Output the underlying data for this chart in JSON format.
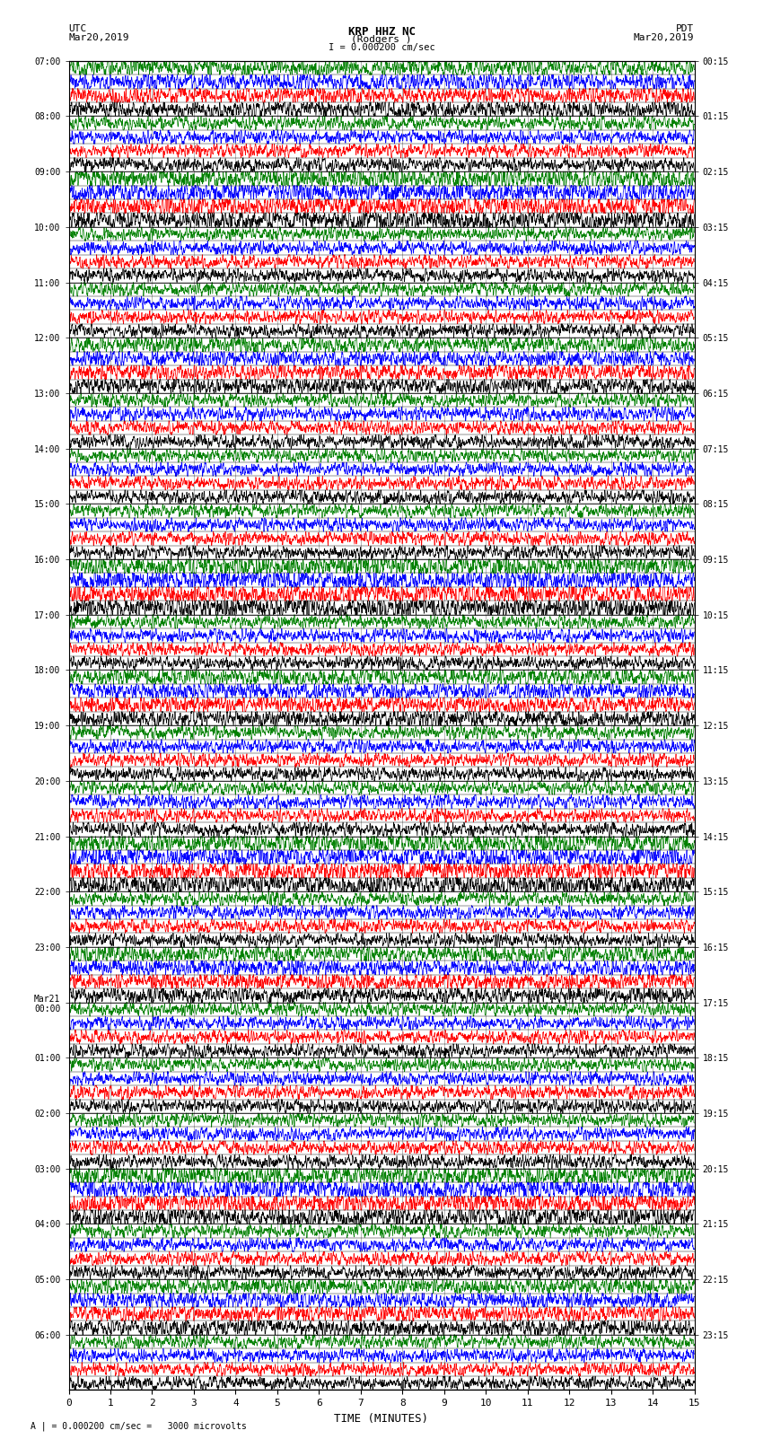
{
  "title_line1": "KRP HHZ NC",
  "title_line2": "(Rodgers )",
  "scale_label": "I = 0.000200 cm/sec",
  "footer_label": "A | = 0.000200 cm/sec =   3000 microvolts",
  "left_header": "UTC",
  "left_subheader": "Mar20,2019",
  "right_header": "PDT",
  "right_subheader": "Mar20,2019",
  "xlabel": "TIME (MINUTES)",
  "left_times": [
    "07:00",
    "08:00",
    "09:00",
    "10:00",
    "11:00",
    "12:00",
    "13:00",
    "14:00",
    "15:00",
    "16:00",
    "17:00",
    "18:00",
    "19:00",
    "20:00",
    "21:00",
    "22:00",
    "23:00",
    "Mar21\n00:00",
    "01:00",
    "02:00",
    "03:00",
    "04:00",
    "05:00",
    "06:00"
  ],
  "right_times": [
    "00:15",
    "01:15",
    "02:15",
    "03:15",
    "04:15",
    "05:15",
    "06:15",
    "07:15",
    "08:15",
    "09:15",
    "10:15",
    "11:15",
    "12:15",
    "13:15",
    "14:15",
    "15:15",
    "16:15",
    "17:15",
    "18:15",
    "19:15",
    "20:15",
    "21:15",
    "22:15",
    "23:15"
  ],
  "n_rows": 24,
  "n_traces_per_row": 4,
  "trace_colors": [
    "black",
    "red",
    "blue",
    "green"
  ],
  "xticks": [
    0,
    1,
    2,
    3,
    4,
    5,
    6,
    7,
    8,
    9,
    10,
    11,
    12,
    13,
    14,
    15
  ],
  "xlim": [
    0,
    15
  ],
  "background_color": "white",
  "figsize": [
    8.5,
    16.13
  ],
  "dpi": 100
}
